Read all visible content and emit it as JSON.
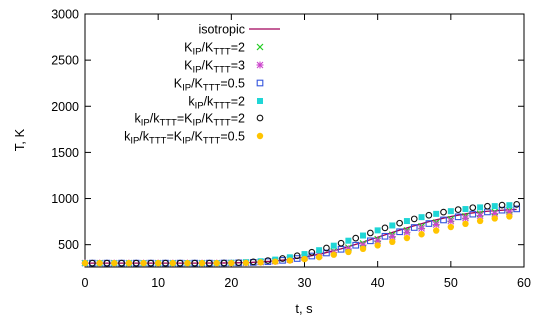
{
  "chart_data": {
    "type": "scatter",
    "xlabel": "t, s",
    "ylabel": "T, K",
    "xlim": [
      0,
      60
    ],
    "ylim": [
      300,
      3000
    ],
    "x_ticks": [
      "0",
      "10",
      "20",
      "30",
      "40",
      "50",
      "60"
    ],
    "y_ticks": [
      "500",
      "1000",
      "1500",
      "2000",
      "2500",
      "3000"
    ],
    "legend_position": "top-right",
    "series": [
      {
        "name": "isotropic",
        "style": "line",
        "color": "#a0005a",
        "x": [
          0,
          5,
          10,
          15,
          20,
          22.5,
          25,
          27.5,
          30,
          32.5,
          35,
          37.5,
          40,
          42.5,
          45,
          47.5,
          50,
          52.5,
          55,
          57.5,
          59
        ],
        "y": [
          300,
          300,
          300,
          300,
          302,
          307,
          318,
          337,
          365,
          405,
          455,
          515,
          580,
          645,
          705,
          760,
          805,
          840,
          862,
          876,
          882
        ]
      },
      {
        "name": "K_IP/K_TTT=2",
        "name_parts": {
          "k1": "K",
          "s1": "IP",
          "k2": "K",
          "s2": "TTT",
          "rest": "=2"
        },
        "style": "cross",
        "color": "#22cc22",
        "x": [
          0,
          2,
          4,
          6,
          8,
          10,
          12,
          14,
          16,
          18,
          20,
          22,
          24,
          26,
          28,
          30,
          32,
          34,
          36,
          38,
          40,
          42,
          44,
          46,
          48,
          50,
          52,
          54,
          56,
          58
        ],
        "y": [
          300,
          300,
          300,
          300,
          300,
          300,
          300,
          300,
          300,
          300,
          302,
          305,
          312,
          324,
          341,
          364,
          393,
          428,
          468,
          513,
          560,
          608,
          655,
          699,
          740,
          776,
          808,
          834,
          855,
          872
        ]
      },
      {
        "name": "K_IP/K_TTT=3",
        "name_parts": {
          "k1": "K",
          "s1": "IP",
          "k2": "K",
          "s2": "TTT",
          "rest": "=3"
        },
        "style": "star",
        "color": "#cc44cc",
        "x": [
          0,
          2,
          4,
          6,
          8,
          10,
          12,
          14,
          16,
          18,
          20,
          22,
          24,
          26,
          28,
          30,
          32,
          34,
          36,
          38,
          40,
          42,
          44,
          46,
          48,
          50,
          52,
          54,
          56,
          58
        ],
        "y": [
          300,
          300,
          300,
          300,
          300,
          300,
          300,
          300,
          300,
          300,
          302,
          305,
          311,
          321,
          337,
          357,
          384,
          416,
          454,
          496,
          541,
          588,
          634,
          677,
          718,
          755,
          787,
          815,
          838,
          856
        ]
      },
      {
        "name": "K_IP/K_TTT=0.5",
        "name_parts": {
          "k1": "K",
          "s1": "IP",
          "k2": "K",
          "s2": "TTT",
          "rest": "=0.5"
        },
        "style": "open-square",
        "color": "#3355dd",
        "x": [
          1,
          3,
          5,
          7,
          9,
          11,
          13,
          15,
          17,
          19,
          21,
          23,
          25,
          27,
          29,
          31,
          33,
          35,
          37,
          39,
          41,
          43,
          45,
          47,
          49,
          51,
          53,
          55,
          57,
          59
        ],
        "y": [
          300,
          300,
          300,
          300,
          300,
          300,
          300,
          300,
          300,
          301,
          303,
          308,
          316,
          330,
          350,
          377,
          410,
          450,
          494,
          542,
          591,
          640,
          686,
          729,
          768,
          802,
          831,
          855,
          874,
          888
        ]
      },
      {
        "name": "k_IP/k_TTT=2",
        "name_parts": {
          "k1": "k",
          "s1": "IP",
          "k2": "k",
          "s2": "TTT",
          "rest": "=2"
        },
        "style": "filled-square",
        "color": "#1fd6d6",
        "x": [
          0,
          2,
          4,
          6,
          8,
          10,
          12,
          14,
          16,
          18,
          20,
          22,
          24,
          26,
          28,
          30,
          32,
          34,
          36,
          38,
          40,
          42,
          44,
          46,
          48,
          50,
          52,
          54,
          56,
          58
        ],
        "y": [
          300,
          300,
          300,
          300,
          300,
          300,
          300,
          300,
          300,
          300,
          304,
          310,
          320,
          338,
          363,
          398,
          440,
          489,
          543,
          599,
          655,
          708,
          756,
          798,
          834,
          863,
          886,
          904,
          918,
          928
        ]
      },
      {
        "name": "k_IP/k_TTT=K_IP/K_TTT=2",
        "name_parts": {
          "k1": "k",
          "s1": "IP",
          "k2": "k",
          "s2": "TTT",
          "k3": "K",
          "s3": "IP",
          "k4": "K",
          "s4": "TTT",
          "rest": "=2"
        },
        "style": "open-circle",
        "color": "#111111",
        "x": [
          1,
          3,
          5,
          7,
          9,
          11,
          13,
          15,
          17,
          19,
          21,
          23,
          25,
          27,
          29,
          31,
          33,
          35,
          37,
          39,
          41,
          43,
          45,
          47,
          49,
          51,
          53,
          55,
          57,
          59
        ],
        "y": [
          300,
          300,
          300,
          300,
          300,
          300,
          300,
          300,
          300,
          301,
          305,
          314,
          328,
          350,
          380,
          418,
          464,
          516,
          571,
          627,
          682,
          733,
          779,
          819,
          853,
          880,
          901,
          917,
          929,
          937
        ]
      },
      {
        "name": "k_IP/k_TTT=K_IP/K_TTT=0.5",
        "name_parts": {
          "k1": "k",
          "s1": "IP",
          "k2": "k",
          "s2": "TTT",
          "k3": "K",
          "s3": "IP",
          "k4": "K",
          "s4": "TTT",
          "rest": "=0.5"
        },
        "style": "filled-circle",
        "color": "#ffc400",
        "x": [
          0,
          2,
          4,
          6,
          8,
          10,
          12,
          14,
          16,
          18,
          20,
          22,
          24,
          26,
          28,
          30,
          32,
          34,
          36,
          38,
          40,
          42,
          44,
          46,
          48,
          50,
          52,
          54,
          56,
          58
        ],
        "y": [
          300,
          300,
          300,
          300,
          300,
          300,
          300,
          300,
          300,
          300,
          301,
          303,
          308,
          316,
          328,
          344,
          365,
          391,
          421,
          455,
          492,
          531,
          572,
          613,
          653,
          691,
          726,
          757,
          784,
          806
        ]
      }
    ]
  }
}
